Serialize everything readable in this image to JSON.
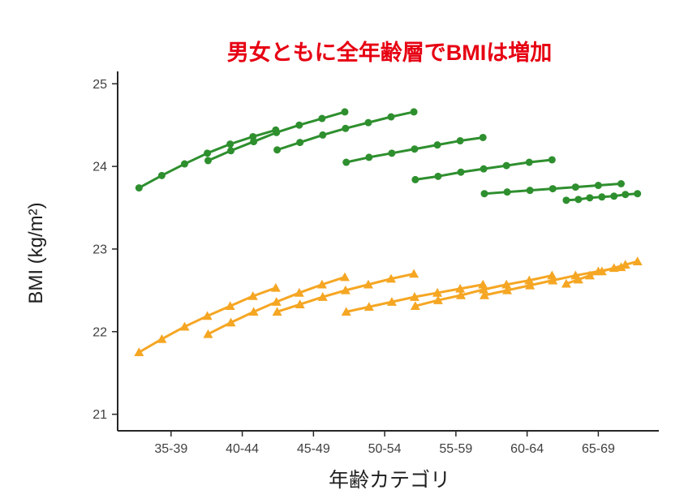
{
  "colors": {
    "title": "#e60012",
    "axis": "#262626",
    "tick_text": "#404040",
    "background": "#ffffff",
    "green_series": "#2e8f2e",
    "orange_series": "#f5a623"
  },
  "chart_data": {
    "type": "line",
    "title": "男女ともに全年齢層でBMIは増加",
    "xlabel": "年齢カテゴリ",
    "ylabel": "BMI (kg/m²)",
    "categories": [
      "35-39",
      "40-44",
      "45-49",
      "50-54",
      "55-59",
      "60-64",
      "65-69"
    ],
    "y_ticks": [
      21,
      22,
      23,
      24,
      25
    ],
    "ylim": [
      20.8,
      25.15
    ],
    "grid": false,
    "legend": "none",
    "description": "Overlapping cohort trajectory segments per age category; green circles upper series, orange triangles lower series, BMI rising within every segment.",
    "segments_x": [
      [
        -0.45,
        -0.13,
        0.19,
        0.51,
        0.83,
        1.15,
        1.47
      ],
      [
        0.52,
        0.84,
        1.16,
        1.48,
        1.8,
        2.12,
        2.44
      ],
      [
        1.49,
        1.81,
        2.13,
        2.45,
        2.77,
        3.09,
        3.41
      ],
      [
        2.46,
        2.78,
        3.1,
        3.42,
        3.74,
        4.06,
        4.38
      ],
      [
        3.43,
        3.75,
        4.07,
        4.39,
        4.71,
        5.03,
        5.35
      ],
      [
        4.4,
        4.72,
        5.04,
        5.36,
        5.68,
        6.0,
        6.32
      ],
      [
        5.55,
        5.72,
        5.88,
        6.05,
        6.22,
        6.38,
        6.55
      ]
    ],
    "series": [
      {
        "name": "green-circle-series",
        "marker": "circle",
        "color": "#2e8f2e",
        "segments_y": [
          [
            23.74,
            23.89,
            24.03,
            24.16,
            24.27,
            24.36,
            24.44
          ],
          [
            24.07,
            24.19,
            24.3,
            24.41,
            24.5,
            24.58,
            24.66
          ],
          [
            24.2,
            24.29,
            24.38,
            24.46,
            24.53,
            24.6,
            24.66
          ],
          [
            24.05,
            24.11,
            24.16,
            24.21,
            24.26,
            24.31,
            24.35
          ],
          [
            23.84,
            23.88,
            23.93,
            23.97,
            24.01,
            24.05,
            24.08
          ],
          [
            23.67,
            23.69,
            23.71,
            23.73,
            23.75,
            23.77,
            23.79
          ],
          [
            23.59,
            23.6,
            23.62,
            23.63,
            23.64,
            23.66,
            23.67
          ]
        ]
      },
      {
        "name": "orange-triangle-series",
        "marker": "triangle",
        "color": "#f5a623",
        "segments_y": [
          [
            21.75,
            21.91,
            22.06,
            22.19,
            22.31,
            22.43,
            22.53
          ],
          [
            21.97,
            22.11,
            22.24,
            22.36,
            22.47,
            22.57,
            22.66
          ],
          [
            22.24,
            22.33,
            22.42,
            22.5,
            22.57,
            22.64,
            22.7
          ],
          [
            22.24,
            22.3,
            22.36,
            22.42,
            22.47,
            22.52,
            22.57
          ],
          [
            22.31,
            22.38,
            22.44,
            22.51,
            22.57,
            22.62,
            22.68
          ],
          [
            22.44,
            22.5,
            22.56,
            22.62,
            22.68,
            22.73,
            22.78
          ],
          [
            22.58,
            22.63,
            22.68,
            22.73,
            22.77,
            22.81,
            22.85
          ]
        ]
      }
    ]
  }
}
